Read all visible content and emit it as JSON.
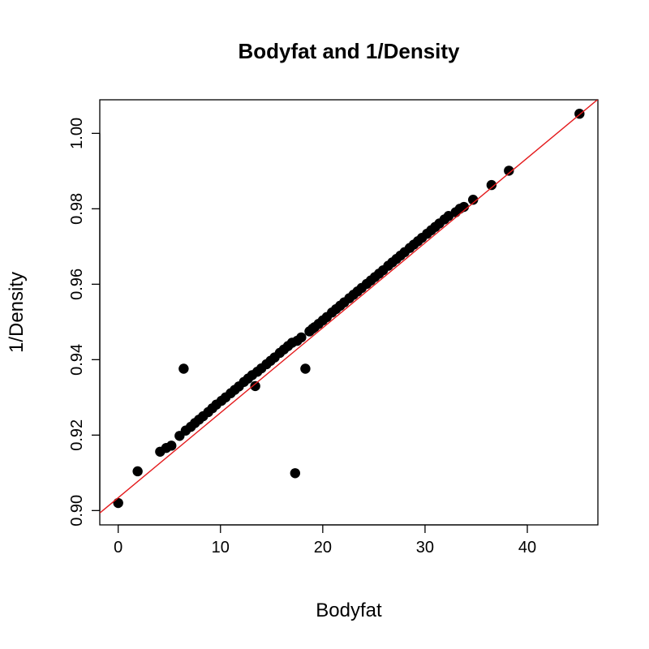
{
  "chart_data": {
    "type": "scatter",
    "title": "Bodyfat and 1/Density",
    "xlabel": "Bodyfat",
    "ylabel": "1/Density",
    "xlim": [
      -1.8,
      46.9
    ],
    "ylim": [
      0.8962,
      1.0089
    ],
    "x_ticks": [
      0,
      10,
      20,
      30,
      40
    ],
    "x_tick_labels": [
      "0",
      "10",
      "20",
      "30",
      "40"
    ],
    "y_ticks": [
      0.9,
      0.92,
      0.94,
      0.96,
      0.98,
      1.0
    ],
    "y_tick_labels": [
      "0.90",
      "0.92",
      "0.94",
      "0.96",
      "0.98",
      "1.00"
    ],
    "grid": false,
    "point_color": "#000000",
    "line_color": "#e41a1c",
    "fit_line": {
      "intercept": 0.9034,
      "slope": 0.002252
    },
    "series": [
      {
        "x": [
          0.0,
          1.9,
          4.1,
          4.7,
          5.2,
          6.4,
          6.0,
          6.6,
          7.1,
          7.5,
          7.9,
          8.3,
          8.8,
          9.2,
          9.6,
          10.1,
          10.5,
          11.0,
          11.4,
          11.8,
          12.3,
          12.7,
          13.1,
          13.4,
          13.6,
          14.0,
          14.5,
          14.9,
          15.3,
          15.8,
          16.2,
          16.6,
          17.0,
          17.3,
          17.5,
          17.9,
          18.3,
          18.7,
          19.0,
          19.2,
          19.6,
          20.0,
          20.4,
          20.9,
          21.3,
          21.7,
          22.1,
          22.6,
          23.0,
          23.4,
          23.8,
          24.3,
          24.7,
          25.1,
          25.5,
          25.9,
          26.4,
          26.8,
          27.2,
          27.6,
          28.0,
          28.5,
          28.9,
          29.3,
          29.7,
          30.2,
          30.6,
          31.0,
          31.4,
          31.9,
          32.3,
          33.0,
          33.4,
          33.8,
          34.7,
          36.5,
          38.2,
          45.1
        ],
        "y": [
          0.902,
          0.9104,
          0.9156,
          0.9166,
          0.9172,
          0.9376,
          0.9198,
          0.9212,
          0.9222,
          0.9232,
          0.9241,
          0.925,
          0.9261,
          0.9271,
          0.9281,
          0.9291,
          0.93,
          0.9311,
          0.932,
          0.9329,
          0.9341,
          0.935,
          0.9359,
          0.933,
          0.9368,
          0.9377,
          0.9388,
          0.9397,
          0.9406,
          0.9418,
          0.9427,
          0.9436,
          0.9445,
          0.9099,
          0.945,
          0.9459,
          0.9376,
          0.9475,
          0.9482,
          0.9486,
          0.9495,
          0.9504,
          0.9513,
          0.9525,
          0.9534,
          0.9543,
          0.9552,
          0.9563,
          0.9572,
          0.9581,
          0.959,
          0.9601,
          0.961,
          0.9619,
          0.9628,
          0.9637,
          0.9649,
          0.9658,
          0.9667,
          0.9676,
          0.9685,
          0.9696,
          0.9705,
          0.9714,
          0.9723,
          0.9734,
          0.9743,
          0.9752,
          0.9761,
          0.9772,
          0.9781,
          0.9791,
          0.98,
          0.9805,
          0.9824,
          0.9863,
          0.9901,
          1.0052
        ]
      }
    ]
  }
}
